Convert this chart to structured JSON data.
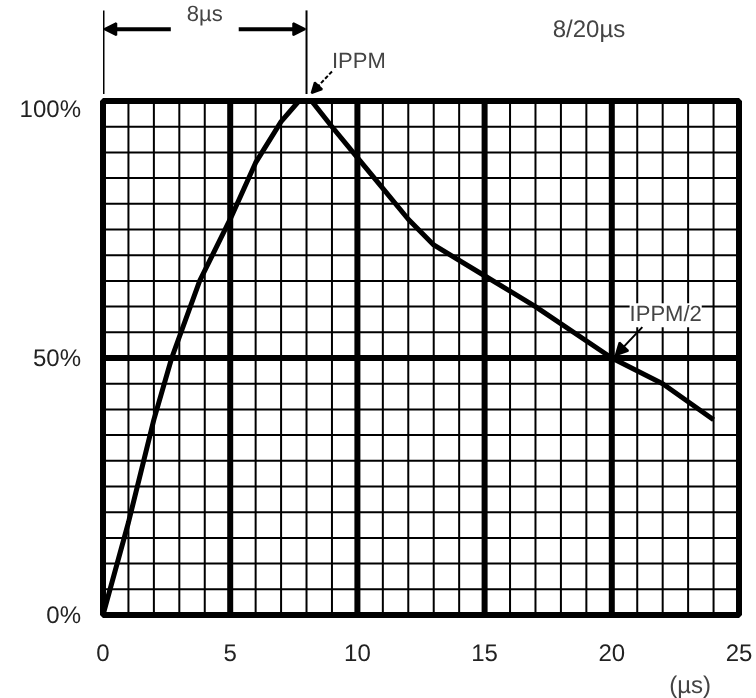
{
  "chart_data": {
    "type": "line",
    "xlabel": "(µs)",
    "x": [
      0,
      1,
      2,
      2.7,
      3.8,
      5,
      6,
      7,
      7.7,
      8.2,
      9,
      10,
      11,
      12,
      13,
      15,
      17,
      20,
      22,
      24
    ],
    "series": [
      {
        "color": "#000000",
        "values": [
          0,
          18,
          38,
          50,
          65,
          77,
          88,
          96,
          100,
          100,
          95,
          89,
          83,
          77,
          72,
          66,
          60,
          50,
          45,
          38
        ]
      }
    ],
    "xlim": [
      0,
      25
    ],
    "ylim": [
      0,
      100
    ],
    "xticks": [
      0,
      {
        "value": 1,
        "label": null
      },
      {
        "value": 2,
        "label": null
      },
      {
        "value": 3,
        "label": null
      },
      {
        "value": 4,
        "label": null
      },
      5,
      {
        "value": 6,
        "label": null
      },
      {
        "value": 7,
        "label": null
      },
      {
        "value": 8,
        "label": null
      },
      {
        "value": 9,
        "label": null
      },
      10,
      {
        "value": 11,
        "label": null
      },
      {
        "value": 12,
        "label": null
      },
      {
        "value": 13,
        "label": null
      },
      {
        "value": 14,
        "label": null
      },
      15,
      {
        "value": 16,
        "label": null
      },
      {
        "value": 17,
        "label": null
      },
      {
        "value": 18,
        "label": null
      },
      {
        "value": 19,
        "label": null
      },
      20,
      {
        "value": 21,
        "label": null
      },
      {
        "value": 22,
        "label": null
      },
      {
        "value": 23,
        "label": null
      },
      {
        "value": 24,
        "label": null
      },
      25
    ],
    "yticks": [
      {
        "value": 0,
        "label": "0%"
      },
      {
        "value": 5,
        "label": null
      },
      {
        "value": 10,
        "label": null
      },
      {
        "value": 15,
        "label": null
      },
      {
        "value": 20,
        "label": null
      },
      {
        "value": 25,
        "label": null
      },
      {
        "value": 30,
        "label": null
      },
      {
        "value": 35,
        "label": null
      },
      {
        "value": 40,
        "label": null
      },
      {
        "value": 45,
        "label": null
      },
      {
        "value": 50,
        "label": "50%"
      },
      {
        "value": 55,
        "label": null
      },
      {
        "value": 60,
        "label": null
      },
      {
        "value": 65,
        "label": null
      },
      {
        "value": 70,
        "label": null
      },
      {
        "value": 75,
        "label": null
      },
      {
        "value": 80,
        "label": null
      },
      {
        "value": 85,
        "label": null
      },
      {
        "value": 90,
        "label": null
      },
      {
        "value": 95,
        "label": null
      },
      {
        "value": 100,
        "label": "100%"
      }
    ],
    "grid": true,
    "line_style": "solid",
    "marker": "none",
    "annotations": [
      "8µs",
      {
        "text": "IPPM",
        "x": 8,
        "y": 100
      },
      "8/20µs",
      {
        "text": "IPPM/2",
        "x": 20,
        "y": 50
      }
    ]
  }
}
